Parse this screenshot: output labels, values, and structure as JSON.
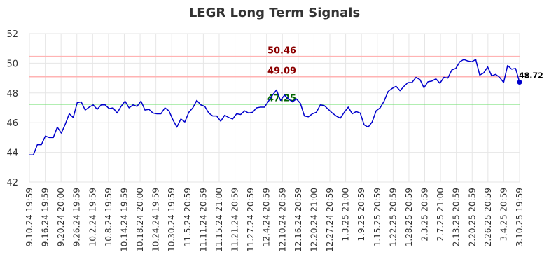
{
  "chart_data": {
    "type": "line",
    "title": "LEGR Long Term Signals",
    "xlabel": "",
    "ylabel": "",
    "ylim": [
      42,
      52
    ],
    "yticks": [
      42,
      44,
      46,
      48,
      50,
      52
    ],
    "grid": true,
    "x_tick_labels": [
      "9.10.24 19:59",
      "9.16.24 19:59",
      "9.20.24 20:00",
      "9.26.24 19:59",
      "10.2.24 19:59",
      "10.8.24 19:59",
      "10.14.24 19:59",
      "10.18.24 20:00",
      "10.24.24 19:59",
      "10.30.24 19:59",
      "11.5.24 20:59",
      "11.11.24 20:59",
      "11.15.24 21:00",
      "11.21.24 20:59",
      "11.27.24 20:59",
      "12.4.24 20:59",
      "12.10.24 20:59",
      "12.16.24 20:59",
      "12.20.24 21:00",
      "12.27.24 20:59",
      "1.3.25 21:00",
      "1.9.25 20:59",
      "1.15.25 20:59",
      "1.22.25 20:59",
      "1.28.25 20:59",
      "2.3.25 20:59",
      "2.7.25 21:00",
      "2.13.25 20:59",
      "2.20.25 20:59",
      "2.26.25 20:59",
      "3.4.25 20:59",
      "3.10.25 19:59"
    ],
    "reference_lines": [
      {
        "value": 50.46,
        "label": "50.46",
        "color": "#ffb3b3",
        "label_color": "#8b0000"
      },
      {
        "value": 49.09,
        "label": "49.09",
        "color": "#ffb3b3",
        "label_color": "#8b0000"
      },
      {
        "value": 47.25,
        "label": "47.25",
        "color": "#66dd66",
        "label_color": "#006400"
      }
    ],
    "last_value_label": "48.72",
    "series": [
      {
        "line_color": "#0000cc",
        "values": [
          43.83,
          43.83,
          44.52,
          44.52,
          45.1,
          45.0,
          45.0,
          45.7,
          45.3,
          45.9,
          46.6,
          46.35,
          47.35,
          47.4,
          46.85,
          47.05,
          47.2,
          46.9,
          47.2,
          47.2,
          46.95,
          47.0,
          46.65,
          47.1,
          47.45,
          47.0,
          47.2,
          47.1,
          47.45,
          46.85,
          46.9,
          46.65,
          46.6,
          46.6,
          47.0,
          46.8,
          46.2,
          45.7,
          46.25,
          46.05,
          46.7,
          47.0,
          47.5,
          47.2,
          47.1,
          46.65,
          46.45,
          46.45,
          46.1,
          46.5,
          46.35,
          46.25,
          46.6,
          46.55,
          46.8,
          46.65,
          46.7,
          47.0,
          47.05,
          47.05,
          47.45,
          47.85,
          48.2,
          47.5,
          47.85,
          47.6,
          47.4,
          47.6,
          47.3,
          46.45,
          46.4,
          46.6,
          46.7,
          47.2,
          47.15,
          46.9,
          46.65,
          46.45,
          46.3,
          46.7,
          47.05,
          46.6,
          46.75,
          46.65,
          45.85,
          45.7,
          46.05,
          46.8,
          47.0,
          47.45,
          48.1,
          48.3,
          48.45,
          48.15,
          48.45,
          48.7,
          48.7,
          49.05,
          48.9,
          48.35,
          48.75,
          48.8,
          48.95,
          48.65,
          49.05,
          49.0,
          49.55,
          49.65,
          50.1,
          50.25,
          50.15,
          50.1,
          50.25,
          49.2,
          49.35,
          49.75,
          49.15,
          49.25,
          49.05,
          48.7,
          49.85,
          49.6,
          49.65,
          48.72
        ]
      }
    ]
  }
}
